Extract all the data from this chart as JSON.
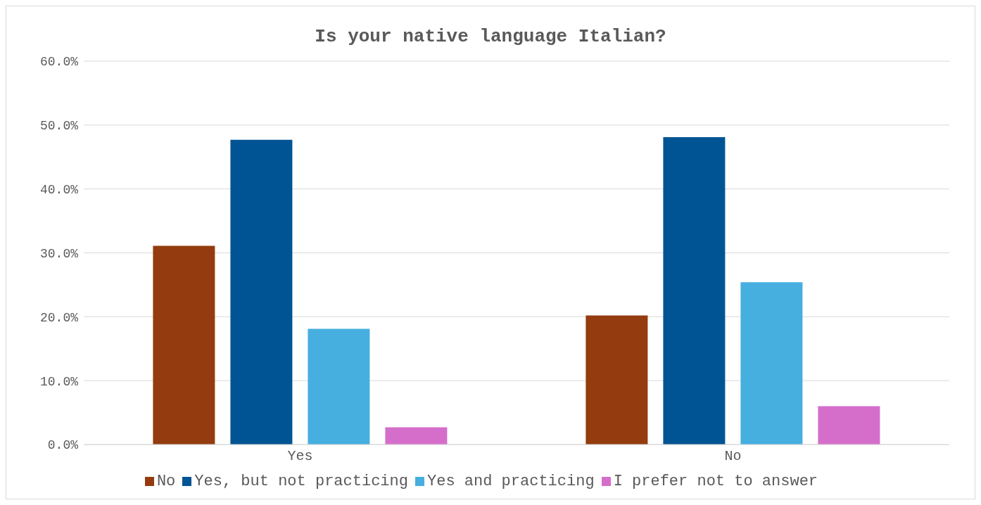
{
  "chart_data": {
    "type": "bar",
    "title": "Is your native language Italian?",
    "categories": [
      "Yes",
      "No"
    ],
    "series": [
      {
        "name": "No",
        "color": "#943c0f",
        "values": [
          31.1,
          20.2
        ]
      },
      {
        "name": "Yes, but not practicing",
        "color": "#015494",
        "values": [
          47.7,
          48.1
        ]
      },
      {
        "name": "Yes and practicing",
        "color": "#46afe0",
        "values": [
          18.1,
          25.4
        ]
      },
      {
        "name": "I prefer not to answer",
        "color": "#d56ecb",
        "values": [
          2.7,
          6.0
        ]
      }
    ],
    "ylim": [
      0,
      60
    ],
    "yticks": [
      {
        "value": 0,
        "label": "0.0%"
      },
      {
        "value": 10,
        "label": "10.0%"
      },
      {
        "value": 20,
        "label": "20.0%"
      },
      {
        "value": 30,
        "label": "30.0%"
      },
      {
        "value": 40,
        "label": "40.0%"
      },
      {
        "value": 50,
        "label": "50.0%"
      },
      {
        "value": 60,
        "label": "60.0%"
      }
    ],
    "grid": "y",
    "legend": "bottom"
  }
}
